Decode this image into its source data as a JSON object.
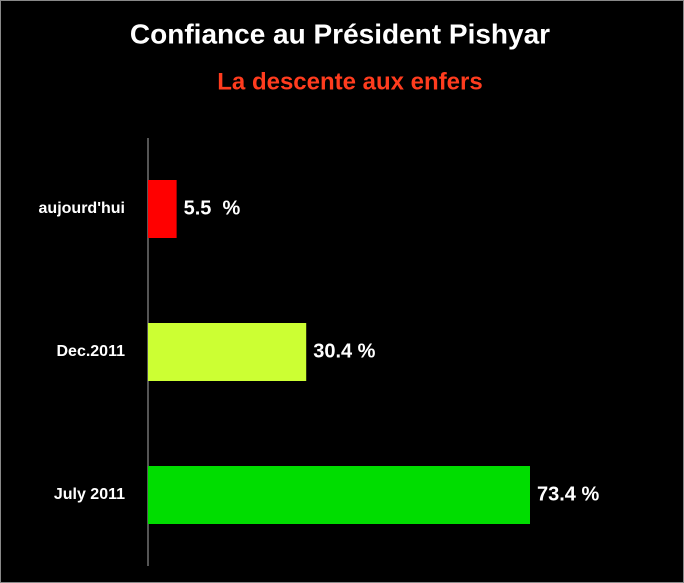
{
  "chart_data": {
    "type": "barh",
    "title": "Confiance au Président Pishyar",
    "subtitle": "La descente aux enfers",
    "categories": [
      "aujourd'hui",
      "Dec.2011",
      "July 2011"
    ],
    "values": [
      5.5,
      30.4,
      73.4
    ],
    "value_labels": [
      "5.5  %",
      "30.4 %",
      "73.4 %"
    ],
    "colors": [
      "#ff0000",
      "#ccff33",
      "#00dd00"
    ]
  }
}
